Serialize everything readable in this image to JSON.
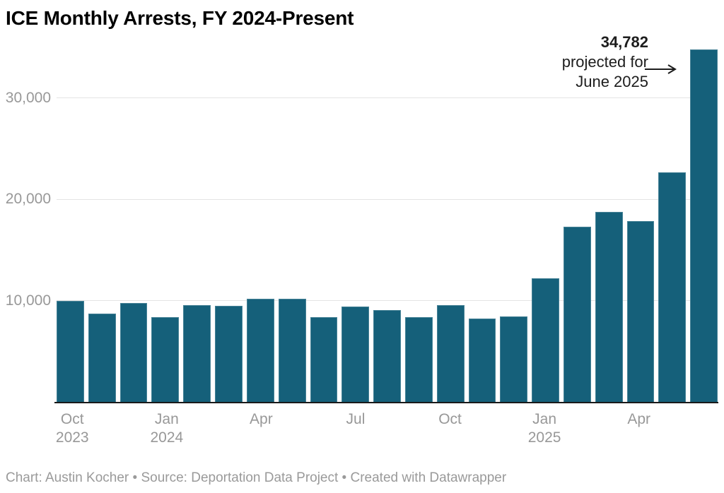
{
  "title": "ICE Monthly Arrests, FY 2024-Present",
  "annotation": {
    "value": "34,782",
    "line2": "projected for",
    "line3": "June 2025"
  },
  "footer": "Chart: Austin Kocher • Source: Deportation Data Project • Created with Datawrapper",
  "colors": {
    "bar": "#15607a",
    "grid": "#e4e4e4",
    "axis": "#1a1a1a",
    "tick_text": "#989898",
    "annotation_text": "#1d1d1d"
  },
  "chart_data": {
    "type": "bar",
    "title": "ICE Monthly Arrests, FY 2024-Present",
    "categories": [
      "Oct 2023",
      "Nov 2023",
      "Dec 2023",
      "Jan 2024",
      "Feb 2024",
      "Mar 2024",
      "Apr 2024",
      "May 2024",
      "Jun 2024",
      "Jul 2024",
      "Aug 2024",
      "Sep 2024",
      "Oct 2024",
      "Nov 2024",
      "Dec 2024",
      "Jan 2025",
      "Feb 2025",
      "Mar 2025",
      "Apr 2025",
      "May 2025",
      "Jun 2025"
    ],
    "values": [
      10050,
      8800,
      9800,
      8450,
      9600,
      9500,
      10200,
      10250,
      8450,
      9450,
      9100,
      8400,
      9600,
      8250,
      8500,
      12250,
      17300,
      18800,
      17900,
      22700,
      34782
    ],
    "projected_last_value": 34782,
    "annotation_text": "34,782 projected for June 2025",
    "ylim": [
      0,
      35478
    ],
    "y_ticks": [
      {
        "value": 10000,
        "label": "10,000"
      },
      {
        "value": 20000,
        "label": "20,000"
      },
      {
        "value": 30000,
        "label": "30,000"
      }
    ],
    "x_ticks": [
      {
        "index": 0,
        "line1": "Oct",
        "line2": "2023"
      },
      {
        "index": 3,
        "line1": "Jan",
        "line2": "2024"
      },
      {
        "index": 6,
        "line1": "Apr",
        "line2": ""
      },
      {
        "index": 9,
        "line1": "Jul",
        "line2": ""
      },
      {
        "index": 12,
        "line1": "Oct",
        "line2": ""
      },
      {
        "index": 15,
        "line1": "Jan",
        "line2": "2025"
      },
      {
        "index": 18,
        "line1": "Apr",
        "line2": ""
      }
    ],
    "grid": true,
    "legend": false
  }
}
